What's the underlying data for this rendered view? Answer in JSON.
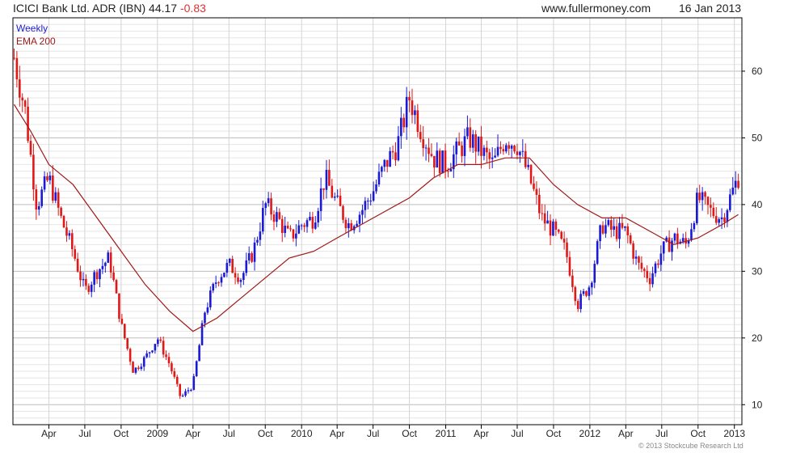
{
  "header": {
    "title": "ICICI Bank Ltd. ADR (IBN) 44.17",
    "change": "-0.83",
    "site": "www.fullermoney.com",
    "date": "16 Jan 2013"
  },
  "footer": {
    "copyright": "© 2013 Stockcube Research Ltd"
  },
  "colors": {
    "up": "#1a1ad6",
    "down": "#e01818",
    "ema": "#a01818",
    "grid": "#cccccc",
    "axis": "#000000"
  },
  "chart_data": {
    "type": "line",
    "legend": {
      "placement": "top-left",
      "entries": [
        "Weekly",
        "EMA 200"
      ]
    },
    "ylim": [
      7,
      68
    ],
    "y_ticks": [
      10,
      20,
      30,
      40,
      50,
      60
    ],
    "x_ticks": [
      "Apr",
      "Jul",
      "Oct",
      "2009",
      "Apr",
      "Jul",
      "Oct",
      "2010",
      "Apr",
      "Jul",
      "Oct",
      "2011",
      "Apr",
      "Jul",
      "Oct",
      "2012",
      "Apr",
      "Jul",
      "Oct",
      "2013"
    ],
    "grid": true,
    "series": [
      {
        "name": "Weekly",
        "style": "ohlc-candles",
        "x": [
          "2008-01-04",
          "2008-02-01",
          "2008-03-01",
          "2008-04-01",
          "2008-05-01",
          "2008-06-01",
          "2008-07-01",
          "2008-08-01",
          "2008-09-01",
          "2008-10-01",
          "2008-11-01",
          "2008-12-01",
          "2009-01-01",
          "2009-02-01",
          "2009-03-01",
          "2009-04-01",
          "2009-05-01",
          "2009-06-01",
          "2009-07-01",
          "2009-08-01",
          "2009-09-01",
          "2009-10-01",
          "2009-11-01",
          "2009-12-01",
          "2010-01-01",
          "2010-02-01",
          "2010-03-01",
          "2010-04-01",
          "2010-05-01",
          "2010-06-01",
          "2010-07-01",
          "2010-08-01",
          "2010-09-01",
          "2010-10-01",
          "2010-11-01",
          "2010-12-01",
          "2011-01-01",
          "2011-02-01",
          "2011-03-01",
          "2011-04-01",
          "2011-05-01",
          "2011-06-01",
          "2011-07-01",
          "2011-08-01",
          "2011-09-01",
          "2011-10-01",
          "2011-11-01",
          "2011-12-01",
          "2012-01-01",
          "2012-02-01",
          "2012-03-01",
          "2012-04-01",
          "2012-05-01",
          "2012-06-01",
          "2012-07-01",
          "2012-08-01",
          "2012-09-01",
          "2012-10-01",
          "2012-11-01",
          "2012-12-01",
          "2013-01-11"
        ],
        "values": [
          62,
          54,
          40,
          44,
          38,
          33,
          27,
          30,
          32,
          22,
          15,
          17,
          20,
          16,
          11,
          13,
          24,
          29,
          31,
          29,
          33,
          40,
          38,
          35,
          37,
          38,
          44,
          40,
          37,
          39,
          42,
          46,
          49,
          56,
          51,
          47,
          46,
          48,
          50,
          48,
          46,
          50,
          49,
          44,
          38,
          36,
          33,
          25,
          28,
          37,
          36,
          36,
          31,
          29,
          33,
          35,
          34,
          41,
          39,
          38,
          44.17
        ]
      },
      {
        "name": "EMA 200",
        "style": "line",
        "x": [
          "2008-01-04",
          "2008-02-15",
          "2008-04-01",
          "2008-06-01",
          "2008-08-01",
          "2008-10-01",
          "2008-12-01",
          "2009-02-01",
          "2009-04-01",
          "2009-06-01",
          "2009-08-01",
          "2009-10-01",
          "2009-12-01",
          "2010-02-01",
          "2010-04-01",
          "2010-06-01",
          "2010-08-01",
          "2010-10-01",
          "2010-12-01",
          "2011-02-01",
          "2011-04-01",
          "2011-06-01",
          "2011-08-01",
          "2011-10-01",
          "2011-12-01",
          "2012-02-01",
          "2012-04-01",
          "2012-06-01",
          "2012-08-01",
          "2012-10-01",
          "2012-12-01",
          "2013-01-11"
        ],
        "values": [
          55,
          51,
          46,
          43,
          38,
          33,
          28,
          24,
          21,
          23,
          26,
          29,
          32,
          33,
          35,
          37,
          39,
          41,
          44,
          46,
          46,
          47,
          47,
          43,
          40,
          38,
          38,
          36,
          34,
          35,
          37,
          38.5
        ]
      }
    ]
  }
}
